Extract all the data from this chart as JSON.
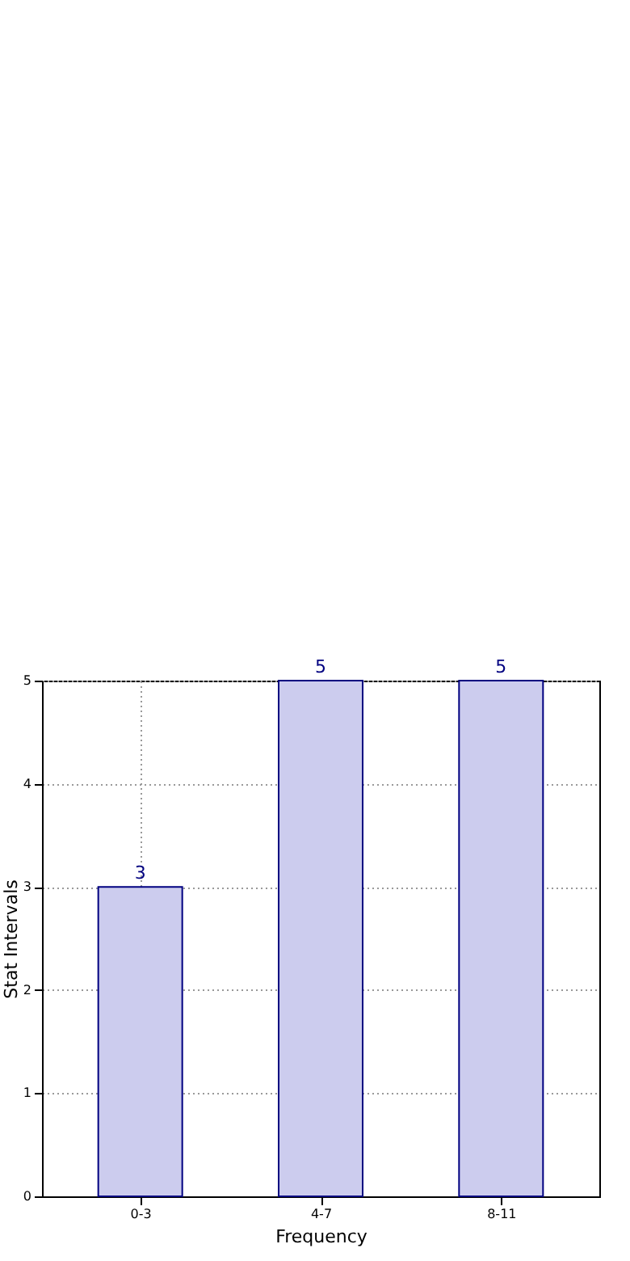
{
  "chart_data": {
    "type": "bar",
    "xlabel": "Frequency",
    "ylabel": "Stat Intervals",
    "categories": [
      "0-3",
      "4-7",
      "8-11"
    ],
    "values": [
      3,
      5,
      5
    ],
    "color": "#ccccee",
    "ylim": [
      0,
      5
    ],
    "yticks": [
      0,
      1,
      2,
      3,
      4,
      5
    ],
    "grid": true,
    "data_labels": true
  }
}
